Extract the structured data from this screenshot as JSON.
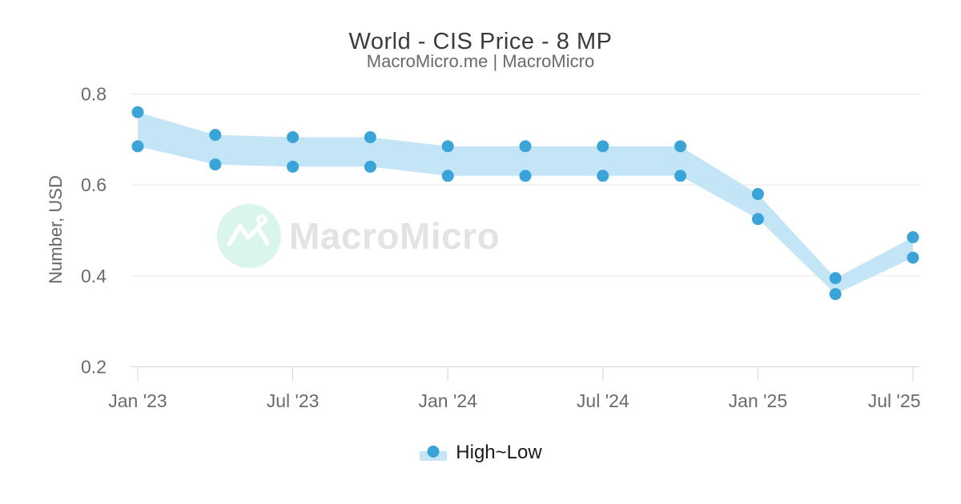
{
  "header": {
    "title": "World - CIS Price - 8 MP",
    "subtitle": "MacroMicro.me | MacroMicro"
  },
  "watermark": {
    "text": "MacroMicro"
  },
  "legend": {
    "label": "High~Low"
  },
  "colors": {
    "marker": "#3aa4d9",
    "band": "#c4e5f5",
    "grid": "#e7e7e7",
    "axis": "#d6d6d6",
    "tick_text": "#6b6b6b",
    "watermark_circle": "#d9f5ec",
    "watermark_glyph": "#ffffff"
  },
  "chart_data": {
    "type": "area",
    "subtype": "arearange-band-high-low",
    "title": "World - CIS Price - 8 MP",
    "subtitle": "MacroMicro.me | MacroMicro",
    "xlabel": "",
    "ylabel": "Number, USD",
    "x": [
      "Jan '23",
      "Apr '23",
      "Jul '23",
      "Oct '23",
      "Jan '24",
      "Apr '24",
      "Jul '24",
      "Oct '24",
      "Jan '25",
      "Apr '25",
      "Jul '25"
    ],
    "series": [
      {
        "name": "High",
        "values": [
          0.76,
          0.71,
          0.705,
          0.705,
          0.685,
          0.685,
          0.685,
          0.685,
          0.58,
          0.395,
          0.485
        ]
      },
      {
        "name": "Low",
        "values": [
          0.685,
          0.645,
          0.64,
          0.64,
          0.62,
          0.62,
          0.62,
          0.62,
          0.525,
          0.36,
          0.44
        ]
      }
    ],
    "ylim": [
      0.2,
      0.8
    ],
    "yticks": [
      0.2,
      0.4,
      0.6,
      0.8
    ],
    "xticks": [
      "Jan '23",
      "Jul '23",
      "Jan '24",
      "Jul '24",
      "Jan '25",
      "Jul '25"
    ],
    "grid": true,
    "legend_position": "bottom",
    "legend_entries": [
      "High~Low"
    ]
  }
}
